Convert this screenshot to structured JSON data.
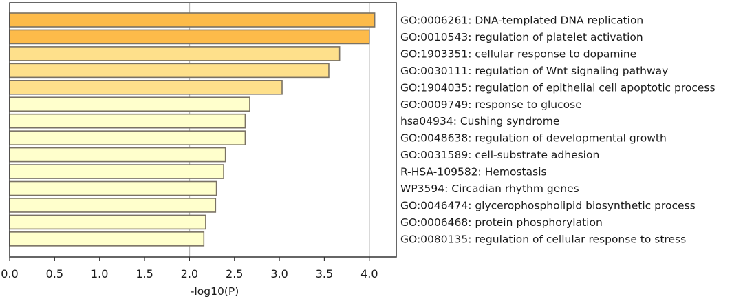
{
  "chart_data": {
    "type": "bar",
    "orientation": "horizontal",
    "title": "",
    "xlabel": "-log10(P)",
    "ylabel": "",
    "xlim": [
      0,
      4.3
    ],
    "xticks": [
      0.0,
      0.5,
      1.0,
      1.5,
      2.0,
      2.5,
      3.0,
      3.5,
      4.0
    ],
    "xtick_labels": [
      "0.0",
      "0.5",
      "1.0",
      "1.5",
      "2.0",
      "2.5",
      "3.0",
      "3.5",
      "4.0"
    ],
    "gridlines_x": [
      2.0,
      4.0
    ],
    "grid": true,
    "legend": "none",
    "categories": [
      "GO:0006261: DNA-templated DNA replication",
      "GO:0010543: regulation of platelet activation",
      "GO:1903351: cellular response to dopamine",
      "GO:0030111: regulation of Wnt signaling pathway",
      "GO:1904035: regulation of epithelial cell apoptotic process",
      "GO:0009749: response to glucose",
      "hsa04934: Cushing syndrome",
      "GO:0048638: regulation of developmental growth",
      "GO:0031589: cell-substrate adhesion",
      "R-HSA-109582: Hemostasis",
      "WP3594: Circadian rhythm genes",
      "GO:0046474: glycerophospholipid biosynthetic process",
      "GO:0006468: protein phosphorylation",
      "GO:0080135: regulation of cellular response to stress"
    ],
    "values": [
      4.06,
      4.0,
      3.67,
      3.55,
      3.03,
      2.67,
      2.62,
      2.62,
      2.4,
      2.38,
      2.3,
      2.29,
      2.18,
      2.16
    ],
    "colors": {
      "high": "#FDBB4A",
      "mid": "#FEE08B",
      "low": "#FFFFCC",
      "edge": "#7A7264",
      "grid": "#B8B8B8",
      "axis": "#333333"
    },
    "color_thresholds": {
      "high_min": 4.0,
      "mid_min": 3.0
    }
  }
}
